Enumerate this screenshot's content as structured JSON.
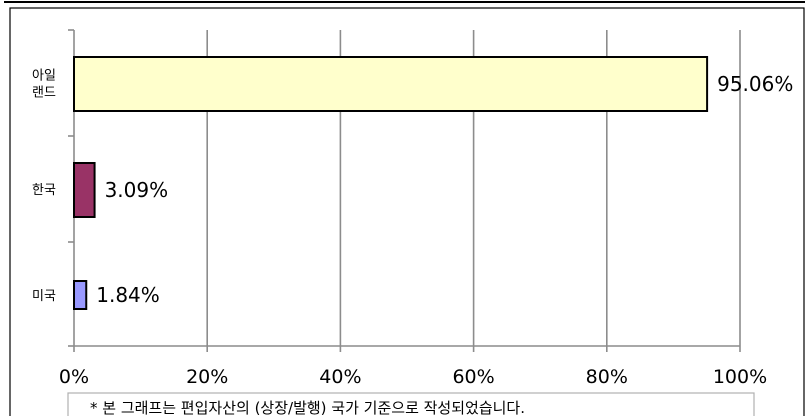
{
  "chart_data": {
    "type": "bar",
    "orientation": "horizontal",
    "categories": [
      "아일\n랜드",
      "한국",
      "미국"
    ],
    "values": [
      95.06,
      3.09,
      1.84
    ],
    "data_labels": [
      "95.06%",
      "3.09%",
      "1.84%"
    ],
    "colors": [
      "#ffffcc",
      "#993366",
      "#9999ff"
    ],
    "xlim": [
      0,
      100
    ],
    "x_ticks": [
      "0%",
      "20%",
      "40%",
      "60%",
      "80%",
      "100%"
    ],
    "grid": true,
    "legend": "none",
    "title": "",
    "xlabel": "",
    "ylabel": ""
  },
  "footnote": "* 본 그래프는 편입자산의 (상장/발행) 국가 기준으로 작성되었습니다."
}
